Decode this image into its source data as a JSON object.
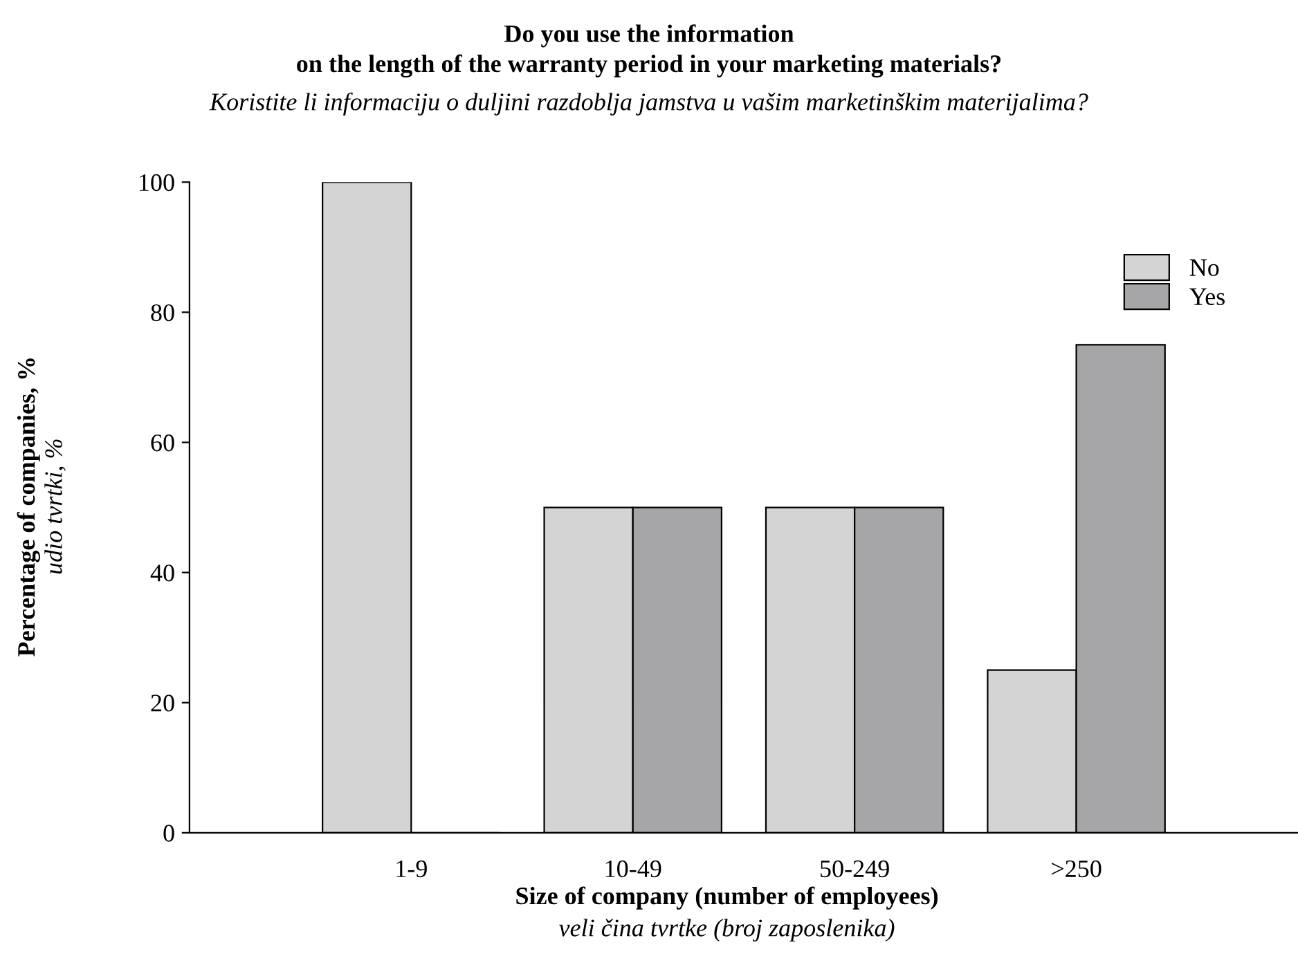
{
  "chart_data": {
    "type": "bar",
    "title": "Do you use the information\non the length of the warranty period in your marketing materials?",
    "subtitle": "Koristite li informaciju o duljini razdoblja jamstva u vašim marketinškim materijalima?",
    "xlabel": "Size of company (number of employees)",
    "ylabel": "Percentage of companies, %",
    "annotations": [
      "veli čina tvrtke (broj zaposlenika)",
      "udio tvrtki, %"
    ],
    "categories": [
      "1-9",
      "10-49",
      "50-249",
      ">250"
    ],
    "series": [
      {
        "name": "No",
        "color": "#d4d4d4",
        "values": [
          100,
          50,
          50,
          25
        ]
      },
      {
        "name": "Yes",
        "color": "#a6a6a8",
        "values": [
          0,
          50,
          50,
          75
        ]
      }
    ],
    "ylim": [
      0,
      100
    ],
    "yticks": [
      0,
      20,
      40,
      60,
      80,
      100
    ],
    "grid": false,
    "legend": "top right"
  }
}
